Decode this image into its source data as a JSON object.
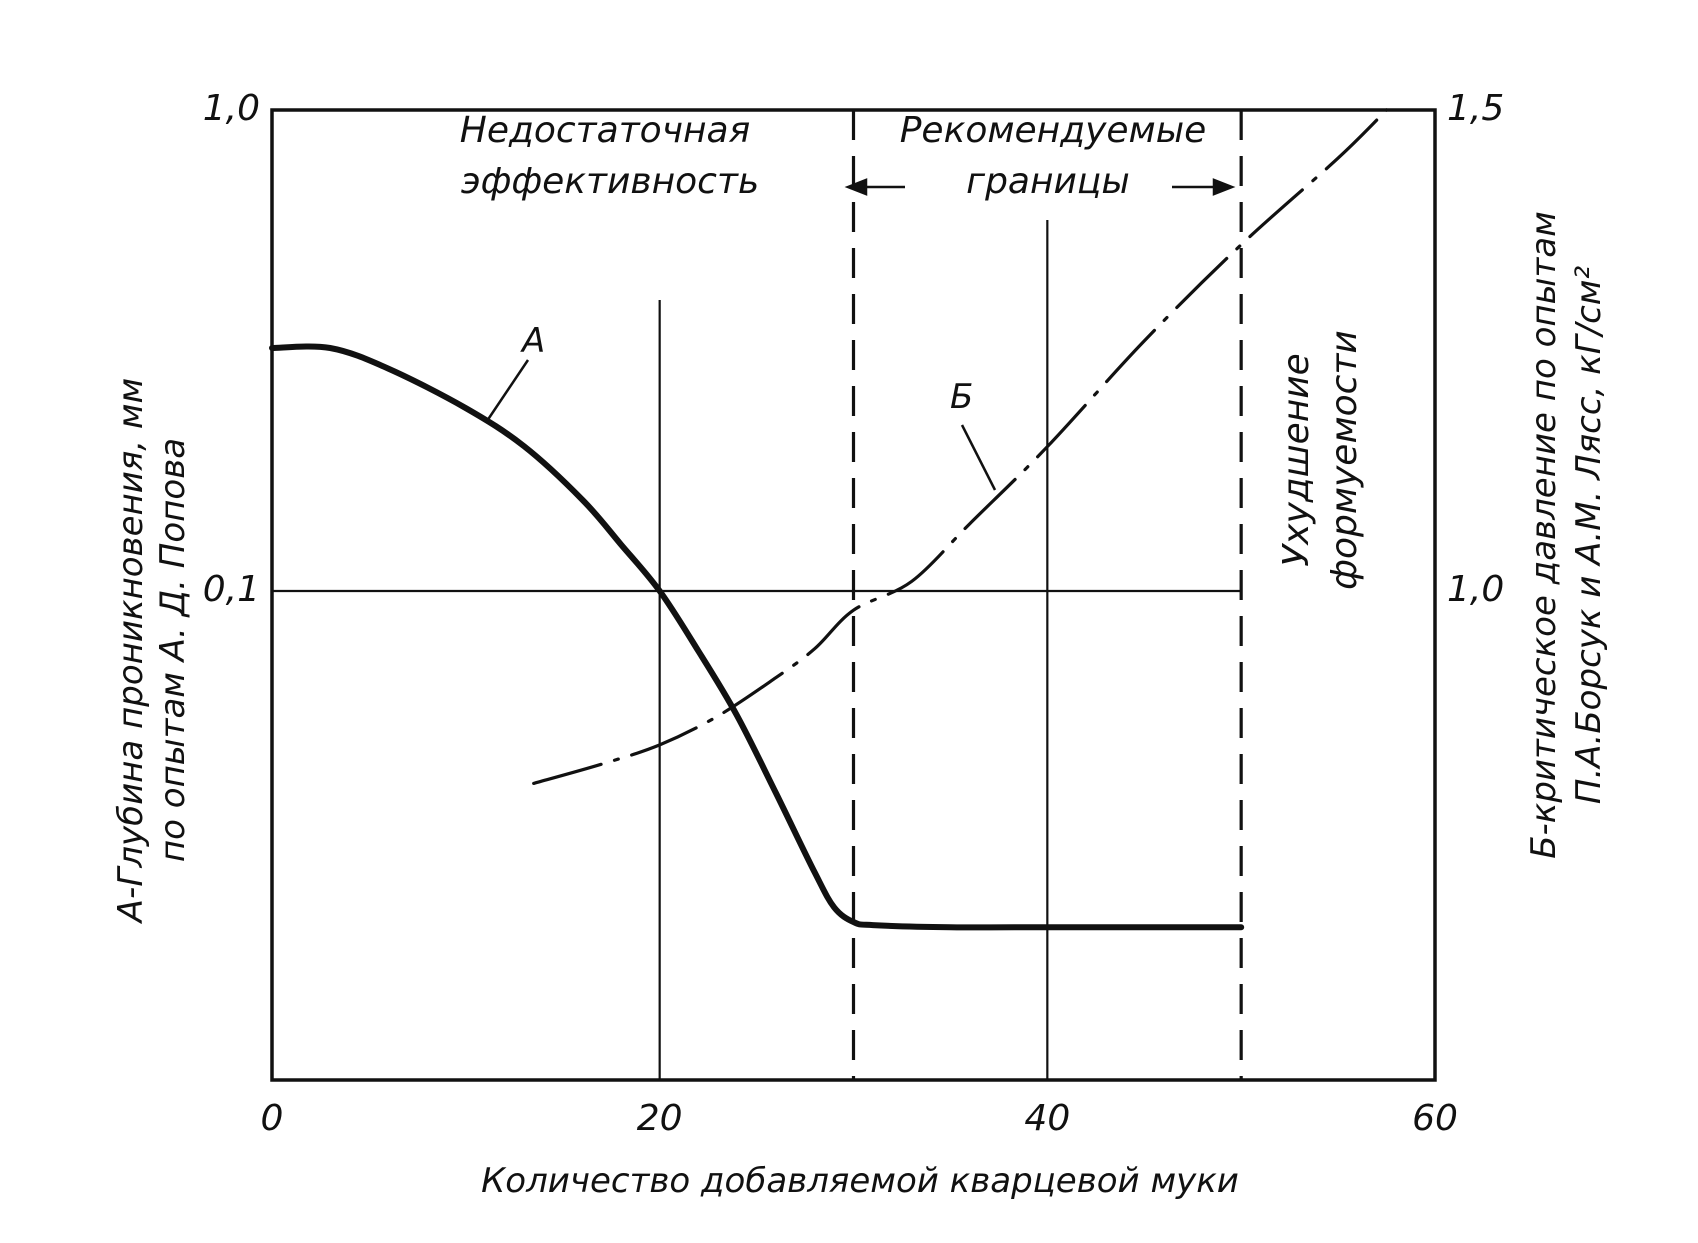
{
  "chart_data": {
    "type": "line",
    "xlabel": "Количество добавляемой кварцевой муки",
    "ylabel_left": [
      "А-Глубина проникновения, мм",
      "по опытам А. Д. Попова"
    ],
    "ylabel_right": [
      "Б-критическое давление по опытам",
      "П.А.Борсук и А.М. Лясс, кГ/см²"
    ],
    "x_ticks": [
      "0",
      "20",
      "40",
      "60"
    ],
    "xlim": [
      0,
      60
    ],
    "y_left_ticks": [
      "1,0",
      "0,1"
    ],
    "y_left_scale": "log",
    "y_right_ticks": [
      "1,5",
      "1,0"
    ],
    "y_right_range": [
      0.5,
      1.5
    ],
    "grid": true,
    "regions": {
      "insufficient_line1": "Недостаточная",
      "insufficient_line2": "эффективность",
      "recommended_line1": "Рекомендуемые",
      "recommended_line2": "границы",
      "worsening_line1": "Ухудшение",
      "worsening_line2": "формуемости"
    },
    "recommended_bounds": [
      30,
      50
    ],
    "series": [
      {
        "name": "А",
        "axis": "left",
        "style": "solid",
        "x": [
          0,
          3,
          6,
          10,
          13,
          16,
          18,
          20,
          22,
          24,
          26,
          28,
          29,
          30,
          31,
          35,
          40,
          45,
          50
        ],
        "y": [
          0.32,
          0.32,
          0.29,
          0.24,
          0.2,
          0.155,
          0.125,
          0.1,
          0.075,
          0.055,
          0.038,
          0.026,
          0.022,
          0.0205,
          0.0202,
          0.02,
          0.02,
          0.02,
          0.02
        ]
      },
      {
        "name": "Б",
        "axis": "right",
        "style": "dash-dot",
        "x": [
          13.5,
          17,
          20,
          23,
          26,
          28,
          30,
          33,
          36,
          40,
          45,
          50,
          55,
          57.5
        ],
        "y": [
          0.8,
          0.82,
          0.84,
          0.87,
          0.91,
          0.94,
          0.98,
          1.01,
          1.07,
          1.15,
          1.26,
          1.36,
          1.45,
          1.5
        ]
      }
    ]
  }
}
